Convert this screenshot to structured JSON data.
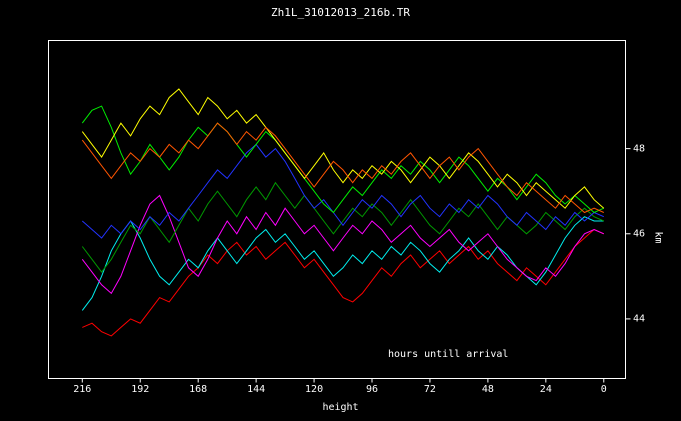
{
  "page": {
    "background": "#000000",
    "foreground": "#ffffff",
    "axis_color": "#ffffff"
  },
  "chart_data": {
    "type": "line",
    "title": "Zh1L_31012013_216b.TR",
    "xlabel": "height",
    "ylabel": "km",
    "annotation": "hours untill arrival",
    "grid": false,
    "legend": "none",
    "x_axis_reversed": true,
    "x_ticks": [
      216,
      192,
      168,
      144,
      120,
      96,
      72,
      48,
      24,
      0
    ],
    "y_ticks": [
      48,
      46,
      44
    ],
    "xlim": [
      230,
      -9
    ],
    "ylim": [
      42.6,
      50.54
    ],
    "x_start": 216,
    "x_step": -4,
    "series": [
      {
        "name": "red",
        "color": "#ff0000",
        "values": [
          43.8,
          43.9,
          43.7,
          43.6,
          43.8,
          44.0,
          43.9,
          44.2,
          44.5,
          44.4,
          44.7,
          45.0,
          45.2,
          45.5,
          45.3,
          45.6,
          45.8,
          45.5,
          45.7,
          45.4,
          45.6,
          45.8,
          45.5,
          45.2,
          45.4,
          45.1,
          44.8,
          44.5,
          44.4,
          44.6,
          44.9,
          45.2,
          45.0,
          45.3,
          45.5,
          45.2,
          45.4,
          45.6,
          45.3,
          45.5,
          45.7,
          45.4,
          45.6,
          45.3,
          45.1,
          44.9,
          45.2,
          45.0,
          44.8,
          45.1,
          45.4,
          45.7,
          45.9,
          46.1,
          46.0
        ]
      },
      {
        "name": "cyan",
        "color": "#00eeee",
        "values": [
          44.2,
          44.5,
          45.0,
          45.6,
          46.0,
          46.3,
          45.9,
          45.4,
          45.0,
          44.8,
          45.1,
          45.4,
          45.2,
          45.6,
          45.9,
          45.6,
          45.3,
          45.6,
          45.9,
          46.1,
          45.8,
          46.0,
          45.7,
          45.4,
          45.6,
          45.3,
          45.0,
          45.2,
          45.5,
          45.3,
          45.6,
          45.4,
          45.7,
          45.5,
          45.8,
          45.6,
          45.3,
          45.1,
          45.4,
          45.6,
          45.9,
          45.6,
          45.4,
          45.7,
          45.5,
          45.2,
          45.0,
          44.8,
          45.1,
          45.5,
          45.9,
          46.2,
          46.4,
          46.3,
          46.3
        ]
      },
      {
        "name": "magenta",
        "color": "#ff00ff",
        "values": [
          45.4,
          45.1,
          44.8,
          44.6,
          45.0,
          45.6,
          46.2,
          46.7,
          46.9,
          46.4,
          45.8,
          45.2,
          45.0,
          45.4,
          45.9,
          46.3,
          46.0,
          46.4,
          46.1,
          46.5,
          46.2,
          46.6,
          46.3,
          46.0,
          46.2,
          45.9,
          45.6,
          45.9,
          46.2,
          46.0,
          46.3,
          46.1,
          45.8,
          46.0,
          46.2,
          45.9,
          45.7,
          45.9,
          46.1,
          45.8,
          45.6,
          45.8,
          46.0,
          45.7,
          45.4,
          45.2,
          45.0,
          44.9,
          45.2,
          45.0,
          45.3,
          45.7,
          46.0,
          46.1,
          46.0
        ]
      },
      {
        "name": "green-dark",
        "color": "#009900",
        "values": [
          45.7,
          45.4,
          45.1,
          45.4,
          45.8,
          46.2,
          46.0,
          46.4,
          46.1,
          45.8,
          46.2,
          46.6,
          46.3,
          46.7,
          47.0,
          46.7,
          46.4,
          46.8,
          47.1,
          46.8,
          47.2,
          46.9,
          46.6,
          46.9,
          46.6,
          46.3,
          46.0,
          46.3,
          46.6,
          46.4,
          46.7,
          46.5,
          46.2,
          46.5,
          46.8,
          46.5,
          46.2,
          46.0,
          46.3,
          46.6,
          46.4,
          46.7,
          46.4,
          46.1,
          46.4,
          46.2,
          46.0,
          46.2,
          46.5,
          46.3,
          46.1,
          46.4,
          46.6,
          46.4,
          46.3
        ]
      },
      {
        "name": "blue",
        "color": "#2233ff",
        "values": [
          46.3,
          46.1,
          45.9,
          46.2,
          46.0,
          46.3,
          46.1,
          46.4,
          46.2,
          46.5,
          46.3,
          46.6,
          46.9,
          47.2,
          47.5,
          47.3,
          47.6,
          47.9,
          48.1,
          47.8,
          48.0,
          47.7,
          47.3,
          46.9,
          46.6,
          46.8,
          46.5,
          46.2,
          46.5,
          46.8,
          46.6,
          46.9,
          46.7,
          46.4,
          46.7,
          46.9,
          46.6,
          46.4,
          46.7,
          46.5,
          46.8,
          46.6,
          46.9,
          46.7,
          46.4,
          46.2,
          46.5,
          46.3,
          46.1,
          46.4,
          46.2,
          46.5,
          46.3,
          46.5,
          46.4
        ]
      },
      {
        "name": "green-bright",
        "color": "#00ee00",
        "values": [
          48.6,
          48.9,
          49.0,
          48.5,
          47.9,
          47.4,
          47.7,
          48.1,
          47.8,
          47.5,
          47.8,
          48.2,
          48.5,
          48.3,
          48.6,
          48.4,
          48.1,
          47.8,
          48.1,
          48.4,
          48.2,
          47.9,
          47.6,
          47.3,
          47.0,
          46.7,
          46.5,
          46.8,
          47.1,
          46.9,
          47.2,
          47.5,
          47.3,
          47.6,
          47.4,
          47.7,
          47.5,
          47.2,
          47.5,
          47.8,
          47.6,
          47.3,
          47.0,
          47.3,
          47.1,
          46.8,
          47.1,
          47.4,
          47.2,
          46.9,
          46.7,
          46.9,
          46.7,
          46.5,
          46.6
        ]
      },
      {
        "name": "yellow",
        "color": "#ffff00",
        "values": [
          48.4,
          48.1,
          47.8,
          48.2,
          48.6,
          48.3,
          48.7,
          49.0,
          48.8,
          49.2,
          49.4,
          49.1,
          48.8,
          49.2,
          49.0,
          48.7,
          48.9,
          48.6,
          48.8,
          48.5,
          48.2,
          47.9,
          47.6,
          47.3,
          47.6,
          47.9,
          47.5,
          47.2,
          47.5,
          47.3,
          47.6,
          47.4,
          47.7,
          47.5,
          47.2,
          47.5,
          47.8,
          47.6,
          47.3,
          47.6,
          47.9,
          47.7,
          47.4,
          47.1,
          47.4,
          47.2,
          46.9,
          47.2,
          47.0,
          46.8,
          46.6,
          46.9,
          47.1,
          46.8,
          46.6
        ]
      },
      {
        "name": "orange",
        "color": "#ff5500",
        "values": [
          48.2,
          47.9,
          47.6,
          47.3,
          47.6,
          47.9,
          47.7,
          48.0,
          47.8,
          48.1,
          47.9,
          48.2,
          48.0,
          48.3,
          48.6,
          48.4,
          48.1,
          48.4,
          48.2,
          48.5,
          48.3,
          48.0,
          47.7,
          47.4,
          47.1,
          47.4,
          47.7,
          47.5,
          47.2,
          47.5,
          47.3,
          47.6,
          47.4,
          47.7,
          47.9,
          47.6,
          47.3,
          47.6,
          47.8,
          47.5,
          47.8,
          48.0,
          47.7,
          47.4,
          47.1,
          46.9,
          47.2,
          47.0,
          46.8,
          46.6,
          46.9,
          46.7,
          46.5,
          46.6,
          46.5
        ]
      }
    ]
  }
}
